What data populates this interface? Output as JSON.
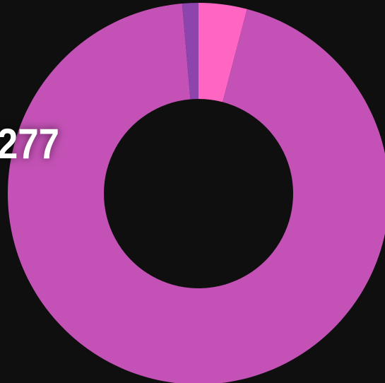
{
  "chart_data": {
    "type": "donut",
    "categories": [
      null,
      null,
      null
    ],
    "values": [
      12,
      277,
      4
    ],
    "colors": [
      "#ff66c4",
      "#c452b6",
      "#8e44ad"
    ],
    "start_angle": 0,
    "labeled": [
      1
    ]
  }
}
